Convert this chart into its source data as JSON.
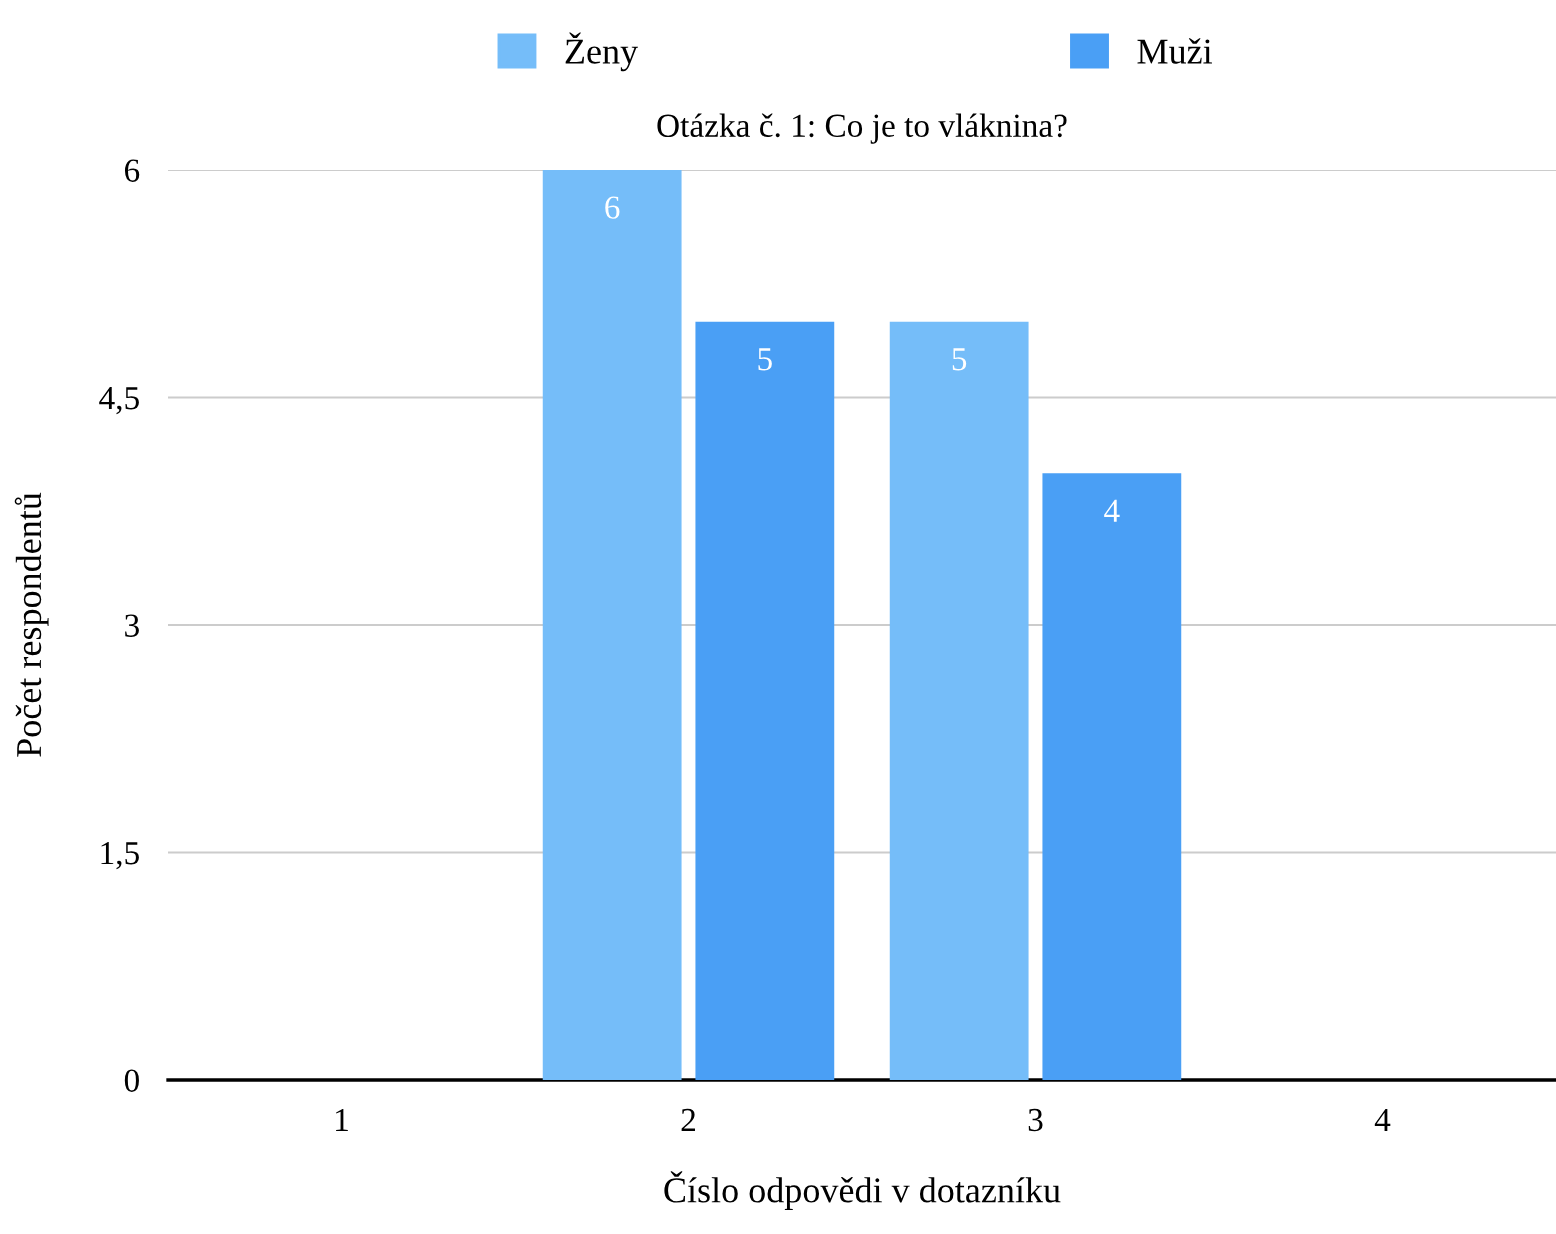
{
  "chart_data": {
    "type": "bar",
    "title": "Otázka č. 1: Co je to vláknina?",
    "xlabel": "Číslo odpovědi v dotazníku",
    "ylabel": "Počet respondentů",
    "categories": [
      "1",
      "2",
      "3",
      "4"
    ],
    "series": [
      {
        "name": "Ženy",
        "color": "#75bdf9",
        "values": [
          0,
          6,
          5,
          0
        ],
        "value_labels": [
          null,
          "6",
          "5",
          null
        ]
      },
      {
        "name": "Muži",
        "color": "#4a9ff5",
        "values": [
          0,
          5,
          4,
          0
        ],
        "value_labels": [
          null,
          "5",
          "4",
          null
        ]
      }
    ],
    "ylim": [
      0,
      6
    ],
    "yticks": [
      0,
      {
        "value": 1.5,
        "label": "1,5"
      },
      3,
      {
        "value": 4.5,
        "label": "4,5"
      },
      6
    ],
    "grid": "y",
    "legend": "top"
  }
}
